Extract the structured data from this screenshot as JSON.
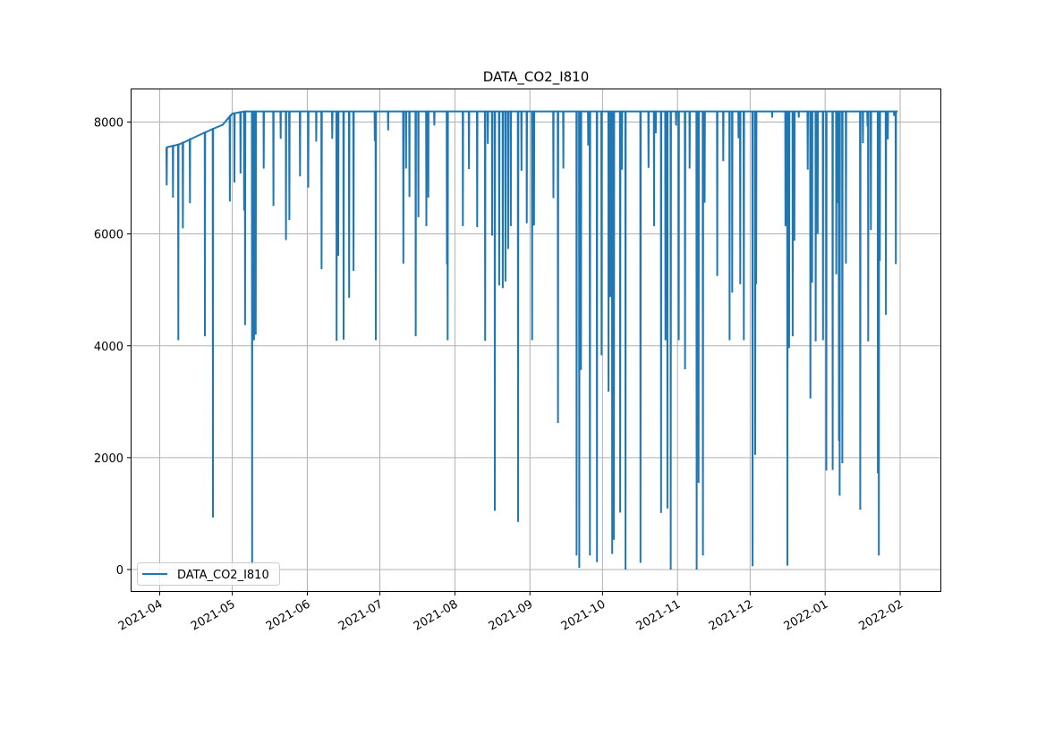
{
  "chart_data": {
    "type": "line",
    "title": "DATA_CO2_I810",
    "xlabel": "",
    "ylabel": "",
    "x_reference_date": "2021-04-01",
    "x_unit": "days since reference date",
    "xlim_days": [
      -12,
      323
    ],
    "ylim": [
      -400,
      8600
    ],
    "grid": true,
    "legend": {
      "placement": "lower-left",
      "entries": [
        "DATA_CO2_I810"
      ]
    },
    "series_color": "#1f77b4",
    "x_ticks": [
      {
        "label": "2021-04",
        "day": 0
      },
      {
        "label": "2021-05",
        "day": 30
      },
      {
        "label": "2021-06",
        "day": 61
      },
      {
        "label": "2021-07",
        "day": 91
      },
      {
        "label": "2021-08",
        "day": 122
      },
      {
        "label": "2021-09",
        "day": 153
      },
      {
        "label": "2021-10",
        "day": 183
      },
      {
        "label": "2021-11",
        "day": 214
      },
      {
        "label": "2021-12",
        "day": 244
      },
      {
        "label": "2022-01",
        "day": 275
      },
      {
        "label": "2022-02",
        "day": 306
      }
    ],
    "y_ticks": [
      {
        "label": "0",
        "value": 0
      },
      {
        "label": "2000",
        "value": 2000
      },
      {
        "label": "4000",
        "value": 4000
      },
      {
        "label": "6000",
        "value": 6000
      },
      {
        "label": "8000",
        "value": 8000
      }
    ],
    "baseline": [
      [
        3,
        7550
      ],
      [
        5,
        7570
      ],
      [
        8,
        7600
      ],
      [
        12,
        7680
      ],
      [
        18,
        7800
      ],
      [
        22,
        7880
      ],
      [
        26,
        7950
      ],
      [
        30,
        8150
      ],
      [
        35,
        8190
      ],
      [
        305,
        8190
      ]
    ],
    "dips": [
      [
        2.9,
        6870
      ],
      [
        5.5,
        6650
      ],
      [
        7.7,
        4100
      ],
      [
        9.6,
        6100
      ],
      [
        12.5,
        6550
      ],
      [
        18.7,
        4170
      ],
      [
        22.0,
        930
      ],
      [
        29.0,
        6580
      ],
      [
        30.9,
        6920
      ],
      [
        33.4,
        7080
      ],
      [
        34.9,
        6420
      ],
      [
        35.3,
        4370
      ],
      [
        38.2,
        100
      ],
      [
        39.0,
        4100
      ],
      [
        39.7,
        4200
      ],
      [
        43.0,
        7170
      ],
      [
        47.0,
        6500
      ],
      [
        50.0,
        7700
      ],
      [
        52.2,
        5890
      ],
      [
        53.6,
        6250
      ],
      [
        58.0,
        7030
      ],
      [
        61.4,
        6830
      ],
      [
        64.7,
        7650
      ],
      [
        66.9,
        5370
      ],
      [
        71.3,
        7700
      ],
      [
        73.1,
        4090
      ],
      [
        73.8,
        5610
      ],
      [
        76.0,
        4110
      ],
      [
        78.3,
        4860
      ],
      [
        80.1,
        5340
      ],
      [
        88.9,
        7660
      ],
      [
        89.3,
        4100
      ],
      [
        94.4,
        7850
      ],
      [
        100.7,
        5470
      ],
      [
        101.8,
        7170
      ],
      [
        103.2,
        6660
      ],
      [
        105.8,
        4170
      ],
      [
        106.9,
        6300
      ],
      [
        110.2,
        6140
      ],
      [
        111.0,
        6650
      ],
      [
        113.5,
        7940
      ],
      [
        118.7,
        5460
      ],
      [
        119.0,
        4100
      ],
      [
        125.3,
        6140
      ],
      [
        127.8,
        7160
      ],
      [
        131.2,
        6120
      ],
      [
        134.5,
        4090
      ],
      [
        135.6,
        7610
      ],
      [
        137.4,
        5970
      ],
      [
        138.5,
        1050
      ],
      [
        140.3,
        5080
      ],
      [
        141.8,
        5030
      ],
      [
        142.9,
        5150
      ],
      [
        144.0,
        5730
      ],
      [
        145.1,
        6140
      ],
      [
        148.1,
        850
      ],
      [
        149.5,
        7130
      ],
      [
        151.7,
        6190
      ],
      [
        153.9,
        4100
      ],
      [
        154.7,
        6150
      ],
      [
        162.7,
        6640
      ],
      [
        164.6,
        2620
      ],
      [
        166.8,
        7170
      ],
      [
        172.3,
        250
      ],
      [
        173.4,
        30
      ],
      [
        174.1,
        3570
      ],
      [
        177.1,
        7580
      ],
      [
        177.8,
        250
      ],
      [
        180.7,
        130
      ],
      [
        182.6,
        3830
      ],
      [
        185.5,
        3180
      ],
      [
        186.2,
        4870
      ],
      [
        187.0,
        280
      ],
      [
        187.7,
        530
      ],
      [
        190.3,
        1020
      ],
      [
        191.0,
        7150
      ],
      [
        192.5,
        0
      ],
      [
        198.7,
        120
      ],
      [
        202.0,
        7180
      ],
      [
        204.3,
        6140
      ],
      [
        205.0,
        7800
      ],
      [
        207.2,
        1010
      ],
      [
        209.0,
        4100
      ],
      [
        209.8,
        1090
      ],
      [
        211.2,
        0
      ],
      [
        213.4,
        7940
      ],
      [
        214.5,
        4100
      ],
      [
        217.1,
        3580
      ],
      [
        219.0,
        7170
      ],
      [
        221.9,
        0
      ],
      [
        222.7,
        1550
      ],
      [
        224.5,
        250
      ],
      [
        225.2,
        6560
      ],
      [
        230.4,
        5250
      ],
      [
        232.9,
        7300
      ],
      [
        235.5,
        4100
      ],
      [
        236.6,
        4950
      ],
      [
        239.2,
        7710
      ],
      [
        239.9,
        5100
      ],
      [
        241.4,
        4100
      ],
      [
        245.0,
        60
      ],
      [
        246.1,
        2050
      ],
      [
        246.5,
        5100
      ],
      [
        253.1,
        8080
      ],
      [
        258.6,
        6140
      ],
      [
        259.4,
        70
      ],
      [
        260.1,
        3960
      ],
      [
        261.6,
        4170
      ],
      [
        262.3,
        5880
      ],
      [
        264.1,
        8080
      ],
      [
        267.8,
        7150
      ],
      [
        268.9,
        3060
      ],
      [
        269.6,
        5130
      ],
      [
        271.1,
        4080
      ],
      [
        271.9,
        6000
      ],
      [
        274.1,
        4100
      ],
      [
        275.5,
        1770
      ],
      [
        278.1,
        1780
      ],
      [
        279.6,
        5280
      ],
      [
        280.3,
        6550
      ],
      [
        280.7,
        2300
      ],
      [
        281.0,
        1320
      ],
      [
        282.1,
        1900
      ],
      [
        283.6,
        5470
      ],
      [
        289.5,
        1070
      ],
      [
        290.6,
        7620
      ],
      [
        292.5,
        7920
      ],
      [
        292.8,
        4080
      ],
      [
        293.9,
        6070
      ],
      [
        296.8,
        1720
      ],
      [
        297.2,
        250
      ],
      [
        297.6,
        5520
      ],
      [
        300.1,
        4550
      ],
      [
        300.9,
        7690
      ],
      [
        303.5,
        8110
      ],
      [
        304.2,
        5460
      ]
    ]
  }
}
